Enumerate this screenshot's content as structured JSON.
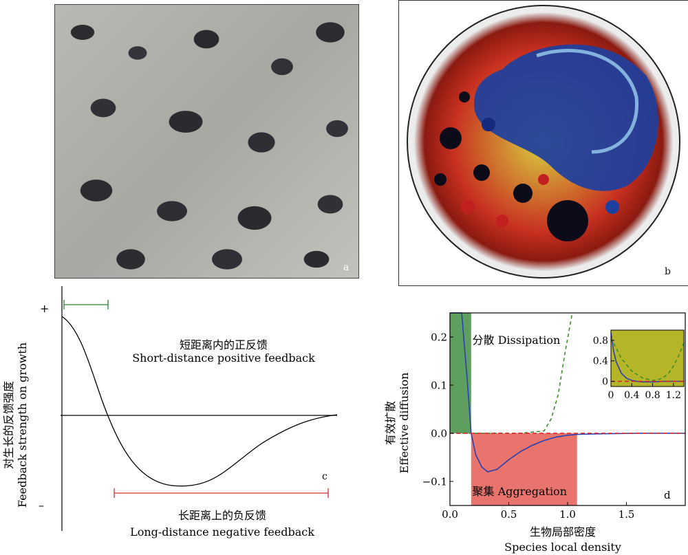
{
  "panel_a": {
    "letter": "a"
  },
  "panel_b": {
    "letter": "b"
  },
  "panel_c": {
    "letter": "c",
    "plus_label": "+",
    "minus_label": "–",
    "ylabel_cn": "对生长的反馈强度",
    "ylabel_en": "Feedback strength on growth",
    "positive_cn": "短距离内的正反馈",
    "positive_en": "Short-distance positive feedback",
    "negative_cn": "长距离上的负反馈",
    "negative_en": "Long-distance negative feedback",
    "colors": {
      "positive_range": "#2e7d32",
      "negative_range": "#d32f2f"
    }
  },
  "panel_d": {
    "letter": "d",
    "ylabel_cn": "有效扩散",
    "ylabel_en": "Effective diffusion",
    "xlabel_cn": "生物局部密度",
    "xlabel_en": "Species local density",
    "dissipation_label": "分散 Dissipation",
    "aggregation_label": "聚集 Aggregation",
    "colors": {
      "dissipation": "#5e9e5e",
      "aggregation": "#e8746d",
      "curve": "#2b3fb0",
      "dashed": "#3b8f2a",
      "zero": "#e02020",
      "inset_bg": "#b5b52a"
    }
  },
  "chart_data": [
    {
      "type": "line",
      "title": "",
      "xlabel": "Species local density",
      "ylabel": "Effective diffusion",
      "xlim": [
        0.0,
        2.0
      ],
      "ylim": [
        -0.15,
        0.25
      ],
      "xticks": [
        "0.0",
        "0.5",
        "1.0",
        "1.5"
      ],
      "yticks": [
        "−0.1",
        "0.0",
        "0.1",
        "0.2"
      ],
      "shaded_regions": [
        {
          "label": "分散 Dissipation",
          "x": [
            0.0,
            0.18
          ],
          "sign": "positive"
        },
        {
          "label": "聚集 Aggregation",
          "x": [
            0.18,
            1.08
          ],
          "sign": "negative"
        }
      ],
      "series": [
        {
          "style": "solid",
          "x": [
            0.0,
            0.05,
            0.1,
            0.15,
            0.18,
            0.22,
            0.27,
            0.32,
            0.4,
            0.5,
            0.6,
            0.7,
            0.8,
            0.9,
            1.0,
            1.1,
            1.3,
            1.6,
            2.0
          ],
          "y": [
            0.25,
            0.25,
            0.25,
            0.1,
            0.0,
            -0.045,
            -0.07,
            -0.08,
            -0.075,
            -0.055,
            -0.038,
            -0.025,
            -0.015,
            -0.008,
            -0.004,
            -0.002,
            -0.001,
            0.0,
            0.0
          ]
        },
        {
          "style": "dashed",
          "x": [
            0.0,
            0.3,
            0.6,
            0.8,
            0.86,
            0.92,
            0.98,
            1.04
          ],
          "y": [
            0.0,
            0.0,
            0.0,
            0.005,
            0.03,
            0.08,
            0.17,
            0.25
          ]
        },
        {
          "style": "dashed-zero",
          "x": [
            0.0,
            2.0
          ],
          "y": [
            0.0,
            0.0
          ]
        }
      ]
    },
    {
      "type": "line",
      "title": "",
      "xlim": [
        0.0,
        1.4
      ],
      "ylim": [
        -0.1,
        1.0
      ],
      "xticks": [
        "0",
        "0.4",
        "0.8",
        "1.2"
      ],
      "yticks": [
        "0",
        "0.4",
        "0.8"
      ],
      "series": [
        {
          "style": "solid",
          "x": [
            0.0,
            0.05,
            0.1,
            0.2,
            0.3,
            0.4,
            0.5,
            0.6,
            0.8,
            1.0,
            1.4
          ],
          "y": [
            0.95,
            0.6,
            0.38,
            0.16,
            0.06,
            0.02,
            0.0,
            -0.01,
            -0.01,
            0.0,
            0.0
          ]
        },
        {
          "style": "dashed",
          "x": [
            0.0,
            0.2,
            0.4,
            0.6,
            0.8,
            0.9,
            1.0,
            1.1,
            1.2,
            1.3,
            1.4
          ],
          "y": [
            0.85,
            0.45,
            0.2,
            0.07,
            0.02,
            0.03,
            0.07,
            0.15,
            0.3,
            0.5,
            0.75
          ]
        },
        {
          "style": "dashed-zero",
          "x": [
            0.0,
            1.4
          ],
          "y": [
            0.0,
            0.0
          ]
        }
      ]
    }
  ]
}
